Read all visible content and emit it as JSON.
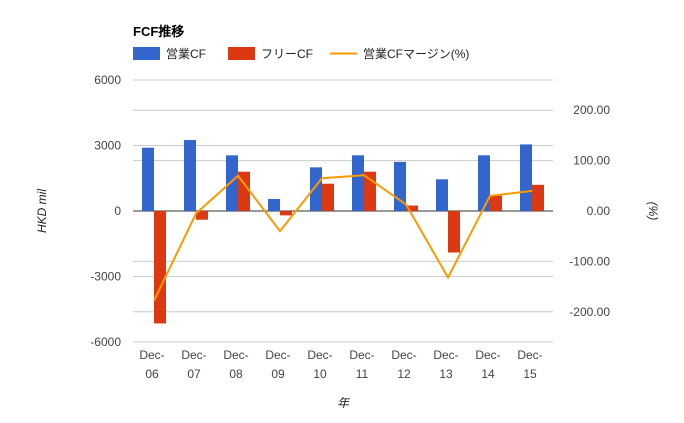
{
  "chart_data": {
    "type": "bar",
    "title": "FCF推移",
    "xlabel": "年",
    "ylabel": "HKD mil",
    "y2label": "(%)",
    "categories": [
      [
        "Dec-",
        "06"
      ],
      [
        "Dec-",
        "07"
      ],
      [
        "Dec-",
        "08"
      ],
      [
        "Dec-",
        "09"
      ],
      [
        "Dec-",
        "10"
      ],
      [
        "Dec-",
        "11"
      ],
      [
        "Dec-",
        "12"
      ],
      [
        "Dec-",
        "13"
      ],
      [
        "Dec-",
        "14"
      ],
      [
        "Dec-",
        "15"
      ]
    ],
    "ylim": [
      -6000,
      6000
    ],
    "yticks": [
      6000,
      3000,
      0,
      -3000,
      -6000
    ],
    "ytick_labels": [
      "6000",
      "3000",
      "0",
      "-3000",
      "-6000"
    ],
    "y2lim": [
      -260,
      260
    ],
    "y2ticks": [
      200,
      100,
      0,
      -100,
      -200
    ],
    "y2tick_labels": [
      "200.00",
      "100.00",
      "0.00",
      "-100.00",
      "-200.00"
    ],
    "legend_position": "top-left",
    "grid": true,
    "series": [
      {
        "name": "営業CF",
        "type": "bar",
        "axis": "left",
        "color": "#3366cc",
        "values": [
          2900,
          3250,
          2550,
          550,
          2000,
          2550,
          2250,
          1450,
          2550,
          3050
        ]
      },
      {
        "name": "フリーCF",
        "type": "bar",
        "axis": "left",
        "color": "#dc3912",
        "values": [
          -5150,
          -400,
          1800,
          -200,
          1250,
          1800,
          250,
          -1900,
          700,
          1200
        ]
      },
      {
        "name": "営業CFマージン(%)",
        "type": "line",
        "axis": "right",
        "color": "#ff9900",
        "values": [
          -178,
          -5,
          70,
          -40,
          65,
          71,
          13,
          -132,
          30,
          40
        ]
      }
    ]
  }
}
